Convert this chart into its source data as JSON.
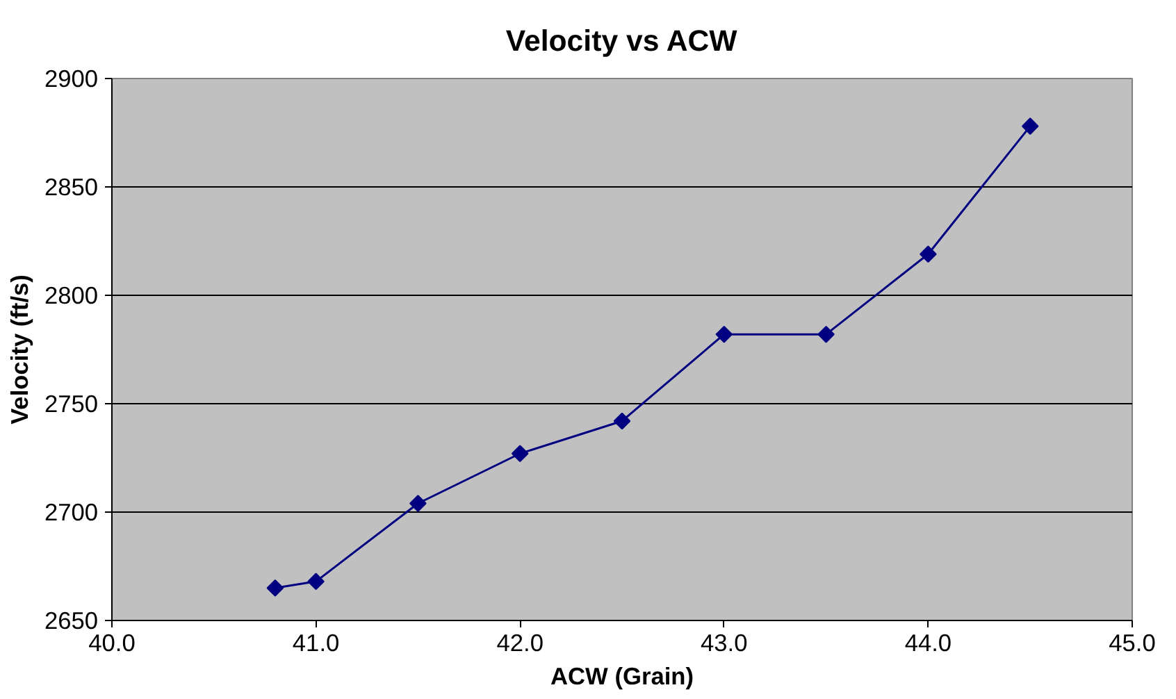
{
  "chart_data": {
    "type": "line",
    "title": "Velocity vs ACW",
    "xlabel": "ACW (Grain)",
    "ylabel": "Velocity (ft/s)",
    "x": [
      40.8,
      41.0,
      41.5,
      42.0,
      42.5,
      43.0,
      43.5,
      44.0,
      44.5
    ],
    "series": [
      {
        "color": "#000080",
        "values": [
          2665,
          2668,
          2704,
          2727,
          2742,
          2782,
          2782,
          2819,
          2878
        ]
      }
    ],
    "xlim": [
      40.0,
      45.0
    ],
    "xticks": [
      {
        "value": 40,
        "label": "40.0"
      },
      {
        "value": 41,
        "label": "41.0"
      },
      {
        "value": 42,
        "label": "42.0"
      },
      {
        "value": 43,
        "label": "43.0"
      },
      {
        "value": 44,
        "label": "44.0"
      },
      {
        "value": 45,
        "label": "45.0"
      }
    ],
    "ylim": [
      2650,
      2900
    ],
    "yticks": [
      2650,
      2700,
      2750,
      2800,
      2850,
      2900
    ],
    "grid": "y",
    "marker": "diamond",
    "line_style": "solid"
  }
}
